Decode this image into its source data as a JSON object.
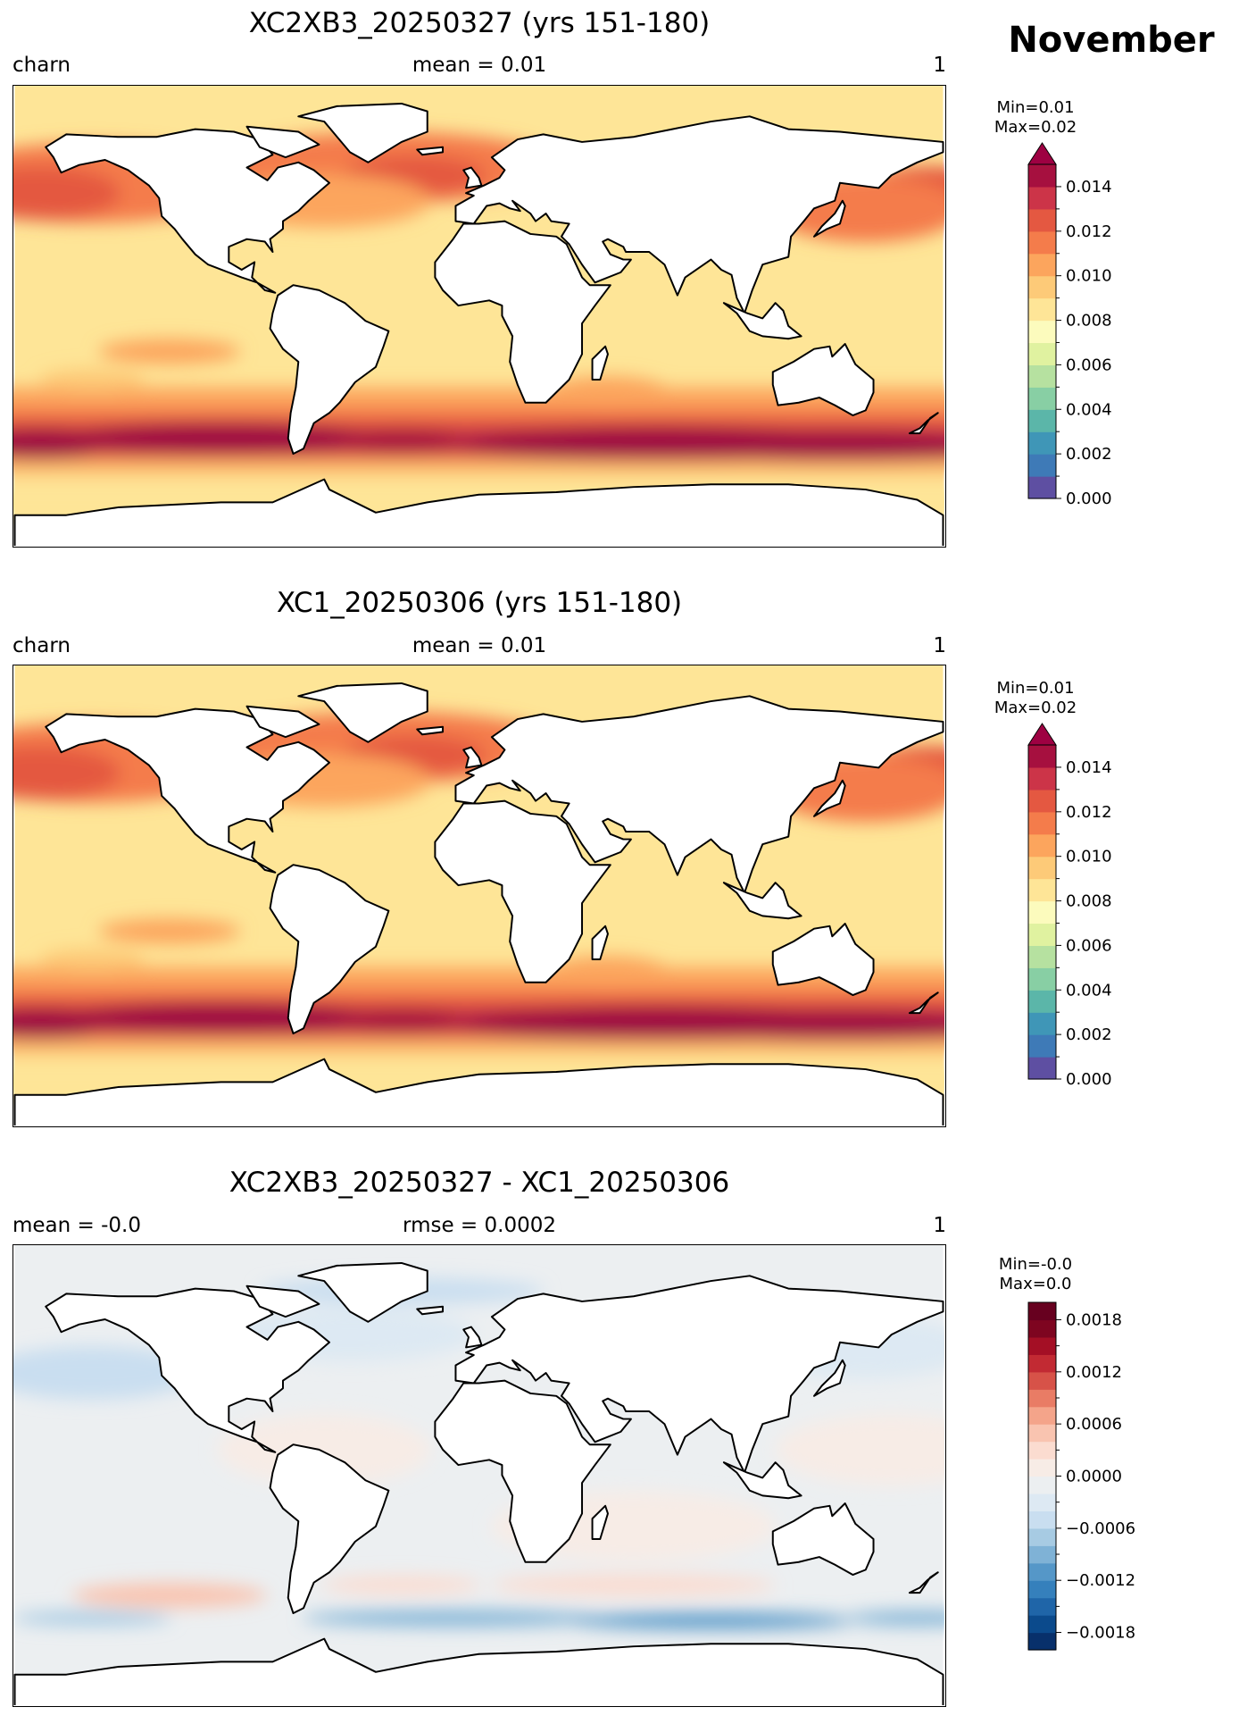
{
  "month": "November",
  "panels": [
    {
      "title": "XC2XB3_20250327 (yrs 151-180)",
      "sub_left": "charn",
      "sub_center": "mean = 0.01",
      "sub_right": "1",
      "min_label": "Min=0.01",
      "max_label": "Max=0.02",
      "colorbar": {
        "extend_max": true,
        "range": [
          0.0,
          0.015
        ],
        "tick_labels": [
          "0.000",
          "0.002",
          "0.004",
          "0.006",
          "0.008",
          "0.010",
          "0.012",
          "0.014"
        ],
        "colors": [
          "#5e4fa2",
          "#3e7ab7",
          "#3f96b7",
          "#5bb6a9",
          "#88cfa4",
          "#b6e1a0",
          "#e0f2a0",
          "#fcfbbd",
          "#fee597",
          "#fdca78",
          "#fca55d",
          "#f47c4b",
          "#e45841",
          "#cc3448",
          "#a6103f",
          "#9e0142"
        ]
      }
    },
    {
      "title": "XC1_20250306 (yrs 151-180)",
      "sub_left": "charn",
      "sub_center": "mean = 0.01",
      "sub_right": "1",
      "min_label": "Min=0.01",
      "max_label": "Max=0.02",
      "colorbar": {
        "extend_max": true,
        "range": [
          0.0,
          0.015
        ],
        "tick_labels": [
          "0.000",
          "0.002",
          "0.004",
          "0.006",
          "0.008",
          "0.010",
          "0.012",
          "0.014"
        ],
        "colors": [
          "#5e4fa2",
          "#3e7ab7",
          "#3f96b7",
          "#5bb6a9",
          "#88cfa4",
          "#b6e1a0",
          "#e0f2a0",
          "#fcfbbd",
          "#fee597",
          "#fdca78",
          "#fca55d",
          "#f47c4b",
          "#e45841",
          "#cc3448",
          "#a6103f",
          "#9e0142"
        ]
      }
    },
    {
      "title": "XC2XB3_20250327 - XC1_20250306",
      "sub_left": "mean = -0.0",
      "sub_center": "rmse = 0.0002",
      "sub_right": "1",
      "min_label": "Min=-0.0",
      "max_label": "Max=0.0",
      "colorbar": {
        "extend_max": false,
        "range": [
          -0.002,
          0.002
        ],
        "tick_labels": [
          "−0.0018",
          "−0.0012",
          "−0.0006",
          "0.0000",
          "0.0006",
          "0.0012",
          "0.0018"
        ],
        "colors": [
          "#08306b",
          "#0b4a8c",
          "#1f65a8",
          "#3580bc",
          "#5597c8",
          "#7fb2d6",
          "#a7cbe3",
          "#c9def0",
          "#dde9f3",
          "#eceff1",
          "#f7ece6",
          "#fbdcd0",
          "#f9c4b0",
          "#f4a48a",
          "#e97c65",
          "#d75248",
          "#c22a33",
          "#a40f25",
          "#7e0520",
          "#67001f"
        ]
      }
    }
  ]
}
